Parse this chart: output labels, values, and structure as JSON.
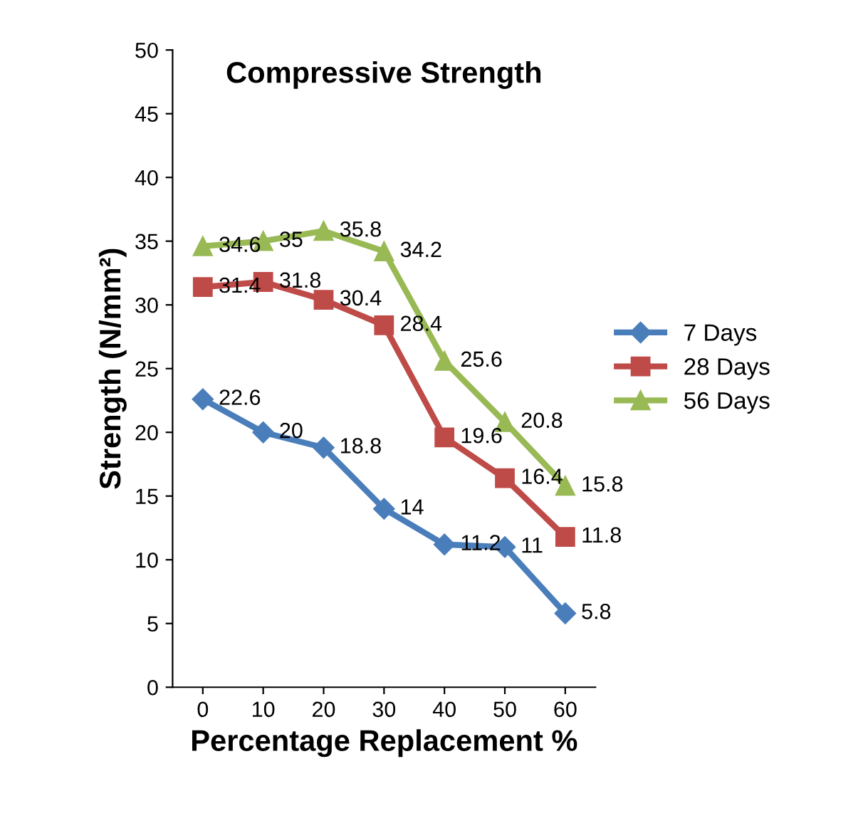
{
  "chart_data": {
    "type": "line",
    "title": "Compressive Strength",
    "xlabel": "Percentage Replacement %",
    "ylabel": "Strength (N/mm²)",
    "categories": [
      "0",
      "10",
      "20",
      "30",
      "40",
      "50",
      "60"
    ],
    "series": [
      {
        "name": "7 Days",
        "color": "#4a7ebb",
        "marker": "diamond",
        "values": [
          22.6,
          20,
          18.8,
          14,
          11.2,
          11,
          5.8
        ]
      },
      {
        "name": "28 Days",
        "color": "#be4b48",
        "marker": "square",
        "values": [
          31.4,
          31.8,
          30.4,
          28.4,
          19.6,
          16.4,
          11.8
        ]
      },
      {
        "name": "56 Days",
        "color": "#98b954",
        "marker": "triangle",
        "values": [
          34.6,
          35,
          35.8,
          34.2,
          25.6,
          20.8,
          15.8
        ]
      }
    ],
    "ylim": [
      0,
      50
    ],
    "yticks": [
      0,
      5,
      10,
      15,
      20,
      25,
      30,
      35,
      40,
      45,
      50
    ],
    "grid": false,
    "legend": "right",
    "data_labels": true,
    "line_style": "solid"
  }
}
